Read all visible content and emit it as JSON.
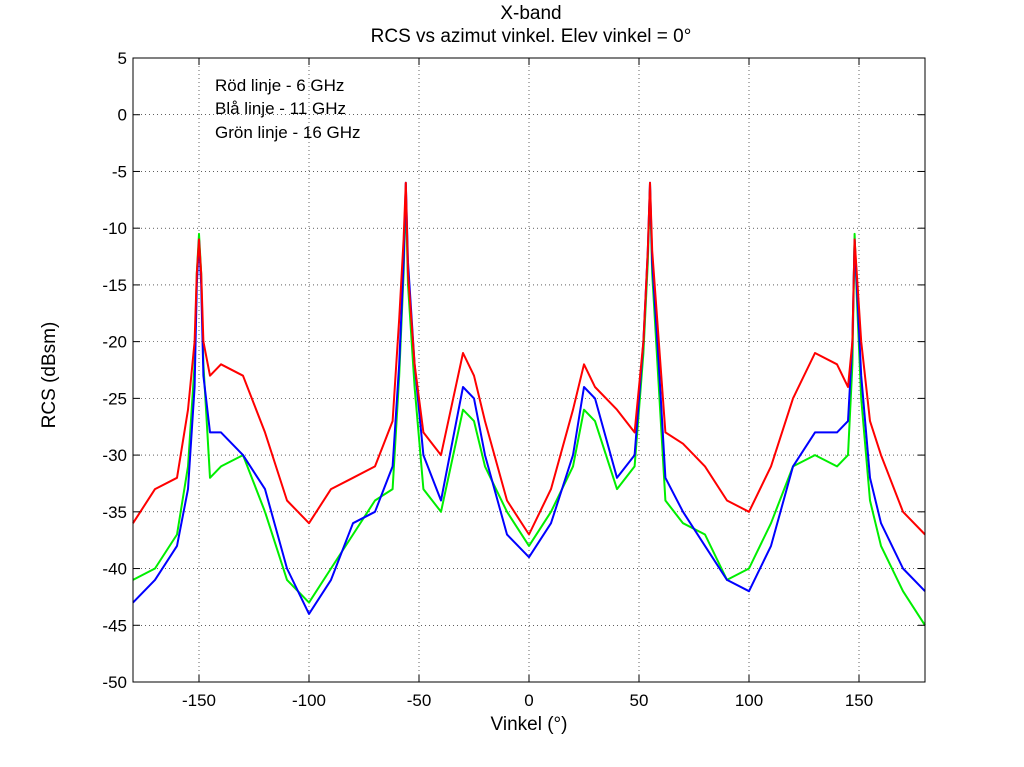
{
  "chart_data": {
    "type": "line",
    "title": "X-band",
    "subtitle": "RCS vs azimut vinkel. Elev vinkel = 0°",
    "xlabel": "Vinkel (°)",
    "ylabel": "RCS (dBsm)",
    "xlim": [
      -180,
      180
    ],
    "ylim": [
      -50,
      5
    ],
    "xticks": [
      -150,
      -100,
      -50,
      0,
      50,
      100,
      150
    ],
    "yticks": [
      5,
      0,
      -5,
      -10,
      -15,
      -20,
      -25,
      -30,
      -35,
      -40,
      -45,
      -50
    ],
    "grid": true,
    "annotations": [
      "Röd linje - 6 GHz",
      "Blå linje - 11 GHz",
      "Grön linje - 16 GHz"
    ],
    "x": [
      -180,
      -170,
      -160,
      -155,
      -152,
      -151,
      -150,
      -149,
      -148,
      -145,
      -140,
      -130,
      -120,
      -110,
      -100,
      -90,
      -80,
      -70,
      -62,
      -59,
      -57,
      -56,
      -55,
      -52,
      -48,
      -40,
      -30,
      -25,
      -20,
      -10,
      0,
      10,
      20,
      25,
      30,
      40,
      48,
      52,
      54,
      55,
      56,
      59,
      62,
      70,
      80,
      90,
      100,
      110,
      120,
      130,
      140,
      145,
      147,
      148,
      149,
      151,
      155,
      160,
      170,
      180
    ],
    "series": [
      {
        "color": "#ff0000",
        "values": [
          -36,
          -33,
          -32,
          -26,
          -20,
          -14,
          -11,
          -14,
          -20,
          -23,
          -22,
          -23,
          -28,
          -34,
          -36,
          -33,
          -32,
          -31,
          -27,
          -18,
          -11,
          -6,
          -14,
          -22,
          -28,
          -30,
          -21,
          -23,
          -27,
          -34,
          -37,
          -33,
          -26,
          -22,
          -24,
          -26,
          -28,
          -20,
          -12,
          -6,
          -12,
          -20,
          -28,
          -29,
          -31,
          -34,
          -35,
          -31,
          -25,
          -21,
          -22,
          -24,
          -20,
          -11,
          -14,
          -20,
          -27,
          -30,
          -35,
          -37
        ]
      },
      {
        "color": "#0000ff",
        "values": [
          -43,
          -41,
          -38,
          -33,
          -24,
          -15,
          -11,
          -15,
          -23,
          -28,
          -28,
          -30,
          -33,
          -40,
          -44,
          -41,
          -36,
          -35,
          -31,
          -22,
          -13,
          -6,
          -13,
          -22,
          -30,
          -34,
          -24,
          -25,
          -30,
          -37,
          -39,
          -36,
          -30,
          -24,
          -25,
          -32,
          -30,
          -20,
          -12,
          -6,
          -13,
          -22,
          -32,
          -35,
          -38,
          -41,
          -42,
          -38,
          -31,
          -28,
          -28,
          -27,
          -20,
          -11,
          -15,
          -23,
          -32,
          -36,
          -40,
          -42
        ]
      },
      {
        "color": "#00ee00",
        "values": [
          -41,
          -40,
          -37,
          -31,
          -22,
          -14,
          -10.5,
          -14,
          -22,
          -32,
          -31,
          -30,
          -35,
          -41,
          -43,
          -40,
          -37,
          -34,
          -33,
          -23,
          -14,
          -7,
          -15,
          -24,
          -33,
          -35,
          -26,
          -27,
          -31,
          -35,
          -38,
          -35,
          -31,
          -26,
          -27,
          -33,
          -31,
          -21,
          -13,
          -6.5,
          -14,
          -24,
          -34,
          -36,
          -37,
          -41,
          -40,
          -36,
          -31,
          -30,
          -31,
          -30,
          -22,
          -10.5,
          -16,
          -25,
          -34,
          -38,
          -42,
          -45
        ]
      }
    ]
  }
}
